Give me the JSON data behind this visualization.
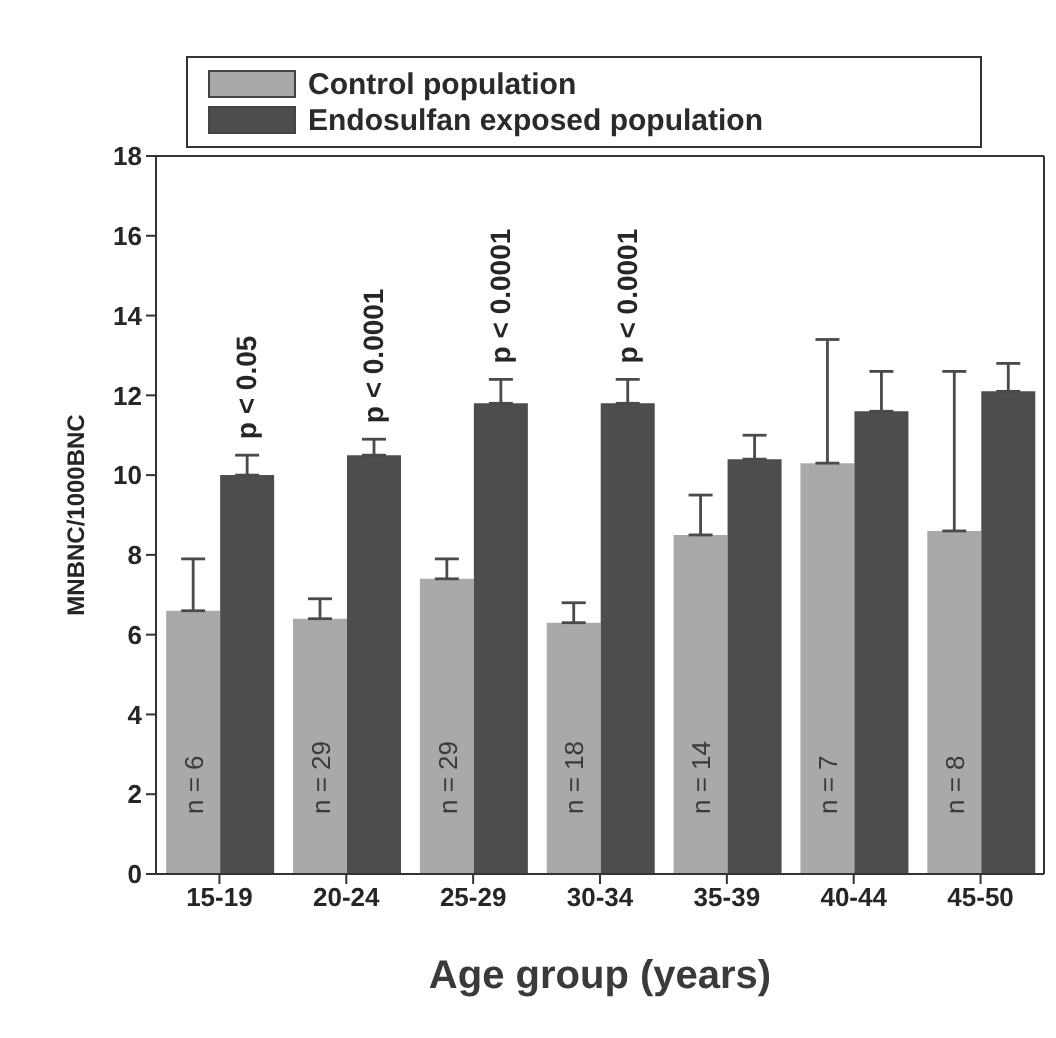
{
  "chart_data": {
    "type": "bar",
    "categories": [
      "15-19",
      "20-24",
      "25-29",
      "30-34",
      "35-39",
      "40-44",
      "45-50"
    ],
    "series": [
      {
        "name": "Control population",
        "color": "#a9a9a9",
        "values": [
          6.6,
          6.4,
          7.4,
          6.3,
          8.5,
          10.3,
          8.6
        ],
        "errors": [
          1.3,
          0.5,
          0.5,
          0.5,
          1.0,
          3.1,
          4.0
        ]
      },
      {
        "name": "Endosulfan exposed population",
        "color": "#4d4d4d",
        "values": [
          10.0,
          10.5,
          11.8,
          11.8,
          10.4,
          11.6,
          12.1
        ],
        "errors": [
          0.5,
          0.4,
          0.6,
          0.6,
          0.6,
          1.0,
          0.7
        ]
      }
    ],
    "xlabel": "Age group (years)",
    "ylabel": "MNBNC/1000BNC",
    "ylim": [
      0,
      18
    ],
    "yticks": [
      0,
      2,
      4,
      6,
      8,
      10,
      12,
      14,
      16,
      18
    ],
    "legend": "top",
    "annotations": [
      {
        "text": "p < 0.05",
        "x": "15-19",
        "y": 10.0
      },
      {
        "text": "p < 0.0001",
        "x": "20-24",
        "y": 10.5
      },
      {
        "text": "p < 0.0001",
        "x": "25-29",
        "y": 11.8
      },
      {
        "text": "p < 0.0001",
        "x": "30-34",
        "y": 11.8
      },
      "n = 6",
      "n = 29",
      "n = 29",
      "n = 18",
      "n = 14",
      "n = 7",
      "n = 8"
    ]
  }
}
